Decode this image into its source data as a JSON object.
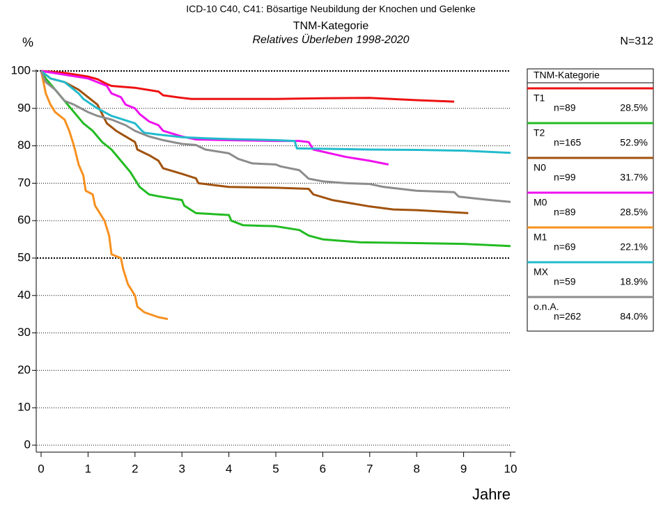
{
  "chart_data": {
    "type": "line",
    "title": "ICD-10 C40, C41: Bösartige Neubildung der Knochen und Gelenke",
    "subtitle": "TNM-Kategorie",
    "subtitle2": "Relatives Überleben 1998-2020",
    "y_label": "%",
    "x_label": "Jahre",
    "total": "N=312",
    "legend_title": "TNM-Kategorie",
    "legend_position": "right",
    "xlim": [
      0,
      10
    ],
    "xticks": [
      0,
      1,
      2,
      3,
      4,
      5,
      6,
      7,
      8,
      9,
      10
    ],
    "ylim": [
      0,
      100
    ],
    "yticks": [
      0,
      10,
      20,
      30,
      40,
      50,
      60,
      70,
      80,
      90,
      100
    ],
    "grid": true,
    "grid_bold": [
      50,
      100
    ],
    "series": [
      {
        "name": "T1",
        "color": "#ee1111",
        "n": "n=89",
        "share": "28.5%",
        "x": [
          0,
          0.5,
          1,
          1.2,
          1.4,
          1.5,
          2,
          2.5,
          2.6,
          3,
          3.2,
          4,
          5,
          6,
          7,
          8,
          8.8
        ],
        "values": [
          100,
          99.5,
          98.5,
          97.8,
          96.5,
          96,
          95.5,
          94.5,
          93.5,
          92.8,
          92.5,
          92.5,
          92.5,
          92.7,
          92.8,
          92.2,
          91.8
        ]
      },
      {
        "name": "T2",
        "color": "#22bb22",
        "n": "n=165",
        "share": "52.9%",
        "x": [
          0,
          0.1,
          0.3,
          0.5,
          0.7,
          0.9,
          1.1,
          1.3,
          1.5,
          1.7,
          1.9,
          2.1,
          2.3,
          2.5,
          3,
          3.05,
          3.3,
          4,
          4.05,
          4.3,
          5,
          5.5,
          5.7,
          6,
          6.8,
          8,
          9,
          10
        ],
        "values": [
          100,
          98,
          95,
          92,
          89,
          86,
          84,
          81,
          79,
          76,
          73,
          69,
          67,
          66.5,
          65.5,
          64,
          62,
          61.5,
          60,
          58.8,
          58.5,
          57.5,
          56,
          55,
          54.2,
          54,
          53.8,
          53.2
        ]
      },
      {
        "name": "N0",
        "color": "#a0520e",
        "n": "n=99",
        "share": "31.7%",
        "x": [
          0,
          0.2,
          0.5,
          0.8,
          1,
          1.2,
          1.4,
          1.6,
          1.8,
          2,
          2.05,
          2.3,
          2.5,
          2.6,
          3,
          3.3,
          3.35,
          4,
          5,
          5.7,
          5.8,
          6.2,
          7,
          7.5,
          8,
          9.1
        ],
        "values": [
          100,
          98,
          97,
          95,
          93,
          91,
          86,
          84,
          82.5,
          81,
          79,
          77.5,
          76,
          74,
          72.5,
          71.3,
          70,
          69,
          68.8,
          68.5,
          67,
          65.5,
          63.8,
          63,
          62.8,
          62
        ]
      },
      {
        "name": "M0",
        "color": "#ee11ee",
        "n": "n=89",
        "share": "28.5%",
        "x": [
          0,
          0.5,
          1,
          1.2,
          1.4,
          1.5,
          1.7,
          1.8,
          2,
          2.1,
          2.3,
          2.5,
          2.6,
          3,
          3.3,
          4,
          5,
          5.5,
          5.7,
          5.8,
          6.5,
          7,
          7.4
        ],
        "values": [
          100,
          99,
          98,
          97,
          96,
          94,
          93,
          91,
          90,
          88.5,
          86.5,
          85.5,
          84,
          82.5,
          81.7,
          81.5,
          81.3,
          81.3,
          81,
          79,
          77,
          76,
          75
        ]
      },
      {
        "name": "M1",
        "color": "#f7901e",
        "n": "n=69",
        "share": "22.1%",
        "x": [
          0,
          0.05,
          0.1,
          0.2,
          0.3,
          0.5,
          0.6,
          0.7,
          0.8,
          0.9,
          0.95,
          1.1,
          1.15,
          1.25,
          1.35,
          1.45,
          1.5,
          1.7,
          1.75,
          1.85,
          2,
          2.05,
          2.2,
          2.5,
          2.7
        ],
        "values": [
          100,
          97,
          94,
          91,
          89,
          87,
          84,
          80,
          75,
          72,
          68,
          67,
          64,
          62,
          60,
          56,
          51,
          50,
          47,
          43,
          40,
          37,
          35.5,
          34.2,
          33.7
        ]
      },
      {
        "name": "MX",
        "color": "#22bbcc",
        "n": "n=59",
        "share": "18.9%",
        "x": [
          0,
          0.2,
          0.5,
          0.8,
          0.9,
          1.2,
          1.5,
          2,
          2.15,
          2.2,
          2.5,
          3,
          3.5,
          4,
          5,
          5.4,
          5.45,
          6,
          7,
          8,
          9,
          10
        ],
        "values": [
          100,
          98,
          97,
          94,
          92.5,
          90,
          88,
          86,
          84,
          83.5,
          83,
          82.3,
          82,
          81.8,
          81.5,
          81.3,
          79.3,
          79.2,
          79,
          78.9,
          78.7,
          78.1
        ]
      },
      {
        "name": "o.n.A.",
        "color": "#8c8c8c",
        "n": "n=262",
        "share": "84.0%",
        "x": [
          0,
          0.1,
          0.3,
          0.5,
          0.7,
          1,
          1.2,
          1.5,
          1.8,
          2,
          2.3,
          2.6,
          3,
          3.3,
          3.5,
          4,
          4.2,
          4.5,
          5,
          5.1,
          5.5,
          5.7,
          6,
          6.5,
          7,
          7.3,
          8,
          8.8,
          8.9,
          9.5,
          10
        ],
        "values": [
          100,
          97,
          95,
          92,
          91,
          89,
          88,
          87,
          85.5,
          84,
          82.5,
          81.5,
          80.5,
          80.2,
          79,
          78,
          76.5,
          75.3,
          75,
          74.5,
          73.5,
          71.2,
          70.5,
          70,
          69.8,
          69,
          68,
          67.6,
          66.4,
          65.6,
          65
        ]
      }
    ]
  }
}
